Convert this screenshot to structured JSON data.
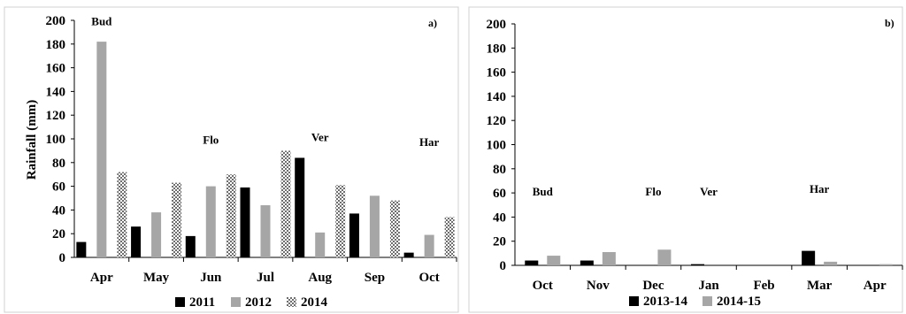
{
  "chart_data": [
    {
      "type": "bar",
      "panel_label": "a)",
      "ylabel": "Rainfall (mm)",
      "xlabel": "",
      "ylim": [
        0,
        200
      ],
      "yticks": [
        0,
        20,
        40,
        60,
        80,
        100,
        120,
        140,
        160,
        180,
        200
      ],
      "grid": false,
      "legend_position": "bottom",
      "categories": [
        "Apr",
        "May",
        "Jun",
        "Jul",
        "Aug",
        "Sep",
        "Oct"
      ],
      "series": [
        {
          "name": "2011",
          "color": "#000000",
          "pattern": "solid",
          "values": [
            13,
            26,
            18,
            59,
            84,
            37,
            4
          ]
        },
        {
          "name": "2012",
          "color": "#a6a6a6",
          "pattern": "solid",
          "values": [
            182,
            38,
            60,
            44,
            21,
            52,
            19
          ]
        },
        {
          "name": "2014",
          "color": "#7f7f7f",
          "pattern": "checker",
          "values": [
            72,
            63,
            70,
            90,
            61,
            48,
            34
          ]
        }
      ],
      "annotations": [
        {
          "text": "Bud",
          "at_category": "Apr",
          "y": 196
        },
        {
          "text": "Flo",
          "at_category": "Jun",
          "y": 96
        },
        {
          "text": "Ver",
          "at_category": "Aug",
          "y": 98
        },
        {
          "text": "Har",
          "at_category": "Oct",
          "y": 94
        }
      ]
    },
    {
      "type": "bar",
      "panel_label": "b)",
      "ylabel": "",
      "xlabel": "",
      "ylim": [
        0,
        200
      ],
      "yticks": [
        0,
        20,
        40,
        60,
        80,
        100,
        120,
        140,
        160,
        180,
        200
      ],
      "grid": false,
      "legend_position": "bottom",
      "categories": [
        "Oct",
        "Nov",
        "Dec",
        "Jan",
        "Feb",
        "Mar",
        "Apr"
      ],
      "series": [
        {
          "name": "2013-14",
          "color": "#000000",
          "pattern": "solid",
          "values": [
            4,
            4,
            0,
            1,
            0,
            12,
            0
          ]
        },
        {
          "name": "2014-15",
          "color": "#a6a6a6",
          "pattern": "solid",
          "values": [
            8,
            11,
            13,
            0,
            0,
            3,
            1
          ]
        }
      ],
      "annotations": [
        {
          "text": "Bud",
          "at_category": "Oct",
          "y": 58
        },
        {
          "text": "Flo",
          "at_category": "Dec",
          "y": 58
        },
        {
          "text": "Ver",
          "at_category": "Jan",
          "y": 58
        },
        {
          "text": "Har",
          "at_category": "Mar",
          "y": 60
        }
      ]
    }
  ]
}
